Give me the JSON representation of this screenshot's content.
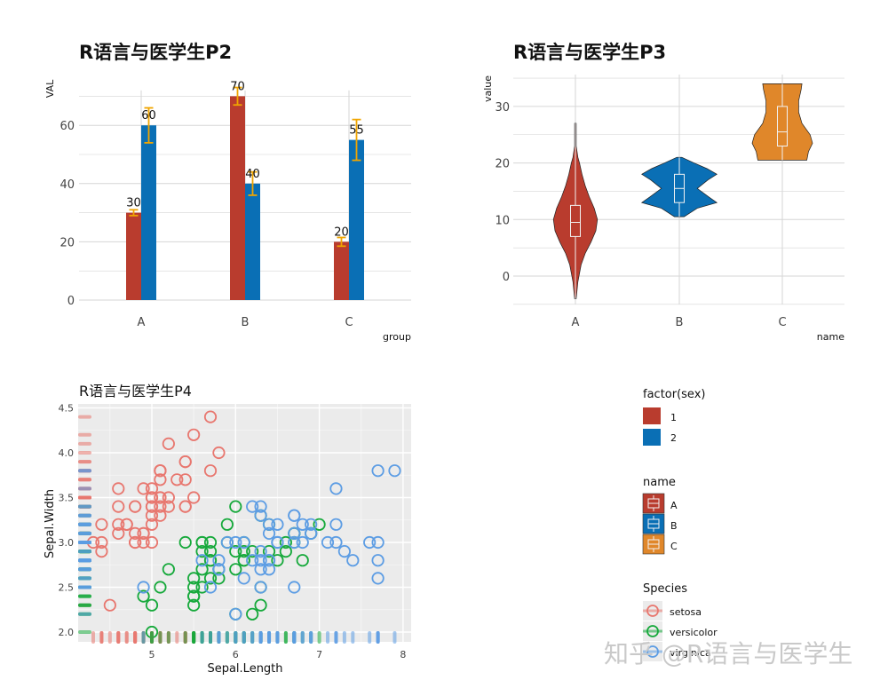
{
  "colors": {
    "sex1": "#b93c2e",
    "sex2": "#0a6fb5",
    "nameA": "#b93c2e",
    "nameB": "#0a6fb5",
    "nameC": "#e0872a",
    "errorbar": "#f0a500",
    "setosa": "#e8776f",
    "versicolor": "#16a93b",
    "virginica": "#5d9de4",
    "panel_grey": "#ebebeb",
    "grid_light": "#d4d4d4"
  },
  "chart_data": [
    {
      "id": "p2",
      "type": "bar",
      "title": "R语言与医学生P2",
      "xlabel": "group",
      "ylabel": "VAL",
      "categories": [
        "A",
        "B",
        "C"
      ],
      "series": [
        {
          "name": "1",
          "values": [
            30,
            70,
            20
          ],
          "errors": [
            1,
            3,
            1.5
          ]
        },
        {
          "name": "2",
          "values": [
            60,
            40,
            55
          ],
          "errors": [
            6,
            4,
            7
          ]
        }
      ],
      "value_labels": [
        [
          "30",
          "70",
          "20"
        ],
        [
          "60",
          "40",
          "55"
        ]
      ],
      "yticks": [
        0,
        20,
        40,
        60
      ],
      "ylim": [
        0,
        73
      ]
    },
    {
      "id": "p3",
      "type": "violin",
      "title": "R语言与医学生P3",
      "xlabel": "name",
      "ylabel": "value",
      "categories": [
        "A",
        "B",
        "C"
      ],
      "groups": [
        {
          "name": "A",
          "min": -4,
          "max": 27,
          "q1": 7,
          "median": 9.5,
          "q3": 12.5,
          "profile": [
            [
              -4,
              0.01
            ],
            [
              -1,
              0.03
            ],
            [
              2,
              0.07
            ],
            [
              4,
              0.12
            ],
            [
              6,
              0.19
            ],
            [
              8,
              0.25
            ],
            [
              10,
              0.27
            ],
            [
              12,
              0.23
            ],
            [
              14,
              0.17
            ],
            [
              16,
              0.12
            ],
            [
              18,
              0.08
            ],
            [
              20,
              0.05
            ],
            [
              21,
              0.03
            ],
            [
              23,
              0.01
            ],
            [
              27,
              0.01
            ]
          ]
        },
        {
          "name": "B",
          "min": 10.5,
          "max": 21,
          "q1": 13,
          "median": 15.5,
          "q3": 18,
          "profile": [
            [
              10.5,
              0.06
            ],
            [
              12,
              0.22
            ],
            [
              13,
              0.46
            ],
            [
              14,
              0.36
            ],
            [
              15.5,
              0.22
            ],
            [
              17,
              0.35
            ],
            [
              18,
              0.46
            ],
            [
              19,
              0.34
            ],
            [
              20,
              0.18
            ],
            [
              21,
              0.03
            ]
          ]
        },
        {
          "name": "C",
          "min": 20.5,
          "max": 34,
          "q1": 23,
          "median": 25.5,
          "q3": 30,
          "profile": [
            [
              20.5,
              0.3
            ],
            [
              22,
              0.32
            ],
            [
              23.5,
              0.37
            ],
            [
              25,
              0.34
            ],
            [
              27,
              0.24
            ],
            [
              29,
              0.2
            ],
            [
              31,
              0.2
            ],
            [
              33,
              0.23
            ],
            [
              34,
              0.24
            ]
          ]
        }
      ],
      "yticks": [
        0,
        10,
        20,
        30
      ],
      "ylim": [
        -5,
        35
      ]
    },
    {
      "id": "p4",
      "type": "scatter",
      "title": "R语言与医学生P4",
      "xlabel": "Sepal.Length",
      "ylabel": "Sepal.Width",
      "xticks": [
        5,
        6,
        7,
        8
      ],
      "yticks": [
        "2.0",
        "2.5",
        "3.0",
        "3.5",
        "4.0",
        "4.5"
      ],
      "xlim": [
        4.2,
        8.1
      ],
      "ylim": [
        1.92,
        4.52
      ],
      "series": [
        {
          "name": "setosa",
          "points": [
            [
              5.1,
              3.5
            ],
            [
              4.9,
              3.0
            ],
            [
              4.7,
              3.2
            ],
            [
              4.6,
              3.1
            ],
            [
              5.0,
              3.6
            ],
            [
              5.4,
              3.9
            ],
            [
              4.6,
              3.4
            ],
            [
              5.0,
              3.4
            ],
            [
              4.4,
              2.9
            ],
            [
              4.9,
              3.1
            ],
            [
              5.4,
              3.7
            ],
            [
              4.8,
              3.4
            ],
            [
              4.8,
              3.0
            ],
            [
              4.3,
              3.0
            ],
            [
              5.8,
              4.0
            ],
            [
              5.7,
              4.4
            ],
            [
              5.4,
              3.9
            ],
            [
              5.1,
              3.5
            ],
            [
              5.7,
              3.8
            ],
            [
              5.1,
              3.8
            ],
            [
              5.4,
              3.4
            ],
            [
              5.1,
              3.7
            ],
            [
              4.6,
              3.6
            ],
            [
              5.1,
              3.3
            ],
            [
              4.8,
              3.4
            ],
            [
              5.0,
              3.0
            ],
            [
              5.0,
              3.4
            ],
            [
              5.2,
              3.5
            ],
            [
              5.2,
              3.4
            ],
            [
              4.7,
              3.2
            ],
            [
              4.8,
              3.1
            ],
            [
              5.4,
              3.4
            ],
            [
              5.2,
              4.1
            ],
            [
              5.5,
              4.2
            ],
            [
              4.9,
              3.1
            ],
            [
              5.0,
              3.2
            ],
            [
              5.5,
              3.5
            ],
            [
              4.9,
              3.6
            ],
            [
              4.4,
              3.0
            ],
            [
              5.1,
              3.4
            ],
            [
              5.0,
              3.5
            ],
            [
              4.5,
              2.3
            ],
            [
              4.4,
              3.2
            ],
            [
              5.0,
              3.5
            ],
            [
              5.1,
              3.8
            ],
            [
              4.8,
              3.0
            ],
            [
              5.1,
              3.8
            ],
            [
              4.6,
              3.2
            ],
            [
              5.3,
              3.7
            ],
            [
              5.0,
              3.3
            ]
          ]
        },
        {
          "name": "versicolor",
          "points": [
            [
              7.0,
              3.2
            ],
            [
              6.4,
              3.2
            ],
            [
              6.9,
              3.1
            ],
            [
              5.5,
              2.3
            ],
            [
              6.5,
              2.8
            ],
            [
              5.7,
              2.8
            ],
            [
              6.3,
              3.3
            ],
            [
              4.9,
              2.4
            ],
            [
              6.6,
              2.9
            ],
            [
              5.2,
              2.7
            ],
            [
              5.0,
              2.0
            ],
            [
              5.9,
              3.0
            ],
            [
              6.0,
              2.2
            ],
            [
              6.1,
              2.9
            ],
            [
              5.6,
              2.9
            ],
            [
              6.7,
              3.1
            ],
            [
              5.6,
              3.0
            ],
            [
              5.8,
              2.7
            ],
            [
              6.2,
              2.2
            ],
            [
              5.6,
              2.5
            ],
            [
              5.9,
              3.2
            ],
            [
              6.1,
              2.8
            ],
            [
              6.3,
              2.5
            ],
            [
              6.1,
              2.8
            ],
            [
              6.4,
              2.9
            ],
            [
              6.6,
              3.0
            ],
            [
              6.8,
              2.8
            ],
            [
              6.7,
              3.0
            ],
            [
              6.0,
              2.9
            ],
            [
              5.7,
              2.6
            ],
            [
              5.5,
              2.4
            ],
            [
              5.5,
              2.4
            ],
            [
              5.8,
              2.7
            ],
            [
              6.0,
              2.7
            ],
            [
              5.4,
              3.0
            ],
            [
              6.0,
              3.4
            ],
            [
              6.7,
              3.1
            ],
            [
              6.3,
              2.3
            ],
            [
              5.6,
              3.0
            ],
            [
              5.5,
              2.5
            ],
            [
              5.5,
              2.6
            ],
            [
              6.1,
              3.0
            ],
            [
              5.8,
              2.6
            ],
            [
              5.0,
              2.3
            ],
            [
              5.6,
              2.7
            ],
            [
              5.7,
              3.0
            ],
            [
              5.7,
              2.9
            ],
            [
              6.2,
              2.9
            ],
            [
              5.1,
              2.5
            ],
            [
              5.7,
              2.8
            ]
          ]
        },
        {
          "name": "virginica",
          "points": [
            [
              6.3,
              3.3
            ],
            [
              5.8,
              2.7
            ],
            [
              7.1,
              3.0
            ],
            [
              6.3,
              2.9
            ],
            [
              6.5,
              3.0
            ],
            [
              7.6,
              3.0
            ],
            [
              4.9,
              2.5
            ],
            [
              7.3,
              2.9
            ],
            [
              6.7,
              2.5
            ],
            [
              7.2,
              3.6
            ],
            [
              6.5,
              3.2
            ],
            [
              6.4,
              2.7
            ],
            [
              6.8,
              3.0
            ],
            [
              5.7,
              2.5
            ],
            [
              5.8,
              2.8
            ],
            [
              6.4,
              3.2
            ],
            [
              6.5,
              3.0
            ],
            [
              7.7,
              3.8
            ],
            [
              7.7,
              2.6
            ],
            [
              6.0,
              2.2
            ],
            [
              6.9,
              3.2
            ],
            [
              5.6,
              2.8
            ],
            [
              7.7,
              2.8
            ],
            [
              6.3,
              2.7
            ],
            [
              6.7,
              3.3
            ],
            [
              7.2,
              3.2
            ],
            [
              6.2,
              2.8
            ],
            [
              6.1,
              3.0
            ],
            [
              6.4,
              2.8
            ],
            [
              7.2,
              3.0
            ],
            [
              7.4,
              2.8
            ],
            [
              7.9,
              3.8
            ],
            [
              6.4,
              2.8
            ],
            [
              6.3,
              2.8
            ],
            [
              6.1,
              2.6
            ],
            [
              7.7,
              3.0
            ],
            [
              6.3,
              3.4
            ],
            [
              6.4,
              3.1
            ],
            [
              6.0,
              3.0
            ],
            [
              6.9,
              3.1
            ],
            [
              6.7,
              3.1
            ],
            [
              6.9,
              3.1
            ],
            [
              5.8,
              2.7
            ],
            [
              6.8,
              3.2
            ],
            [
              6.7,
              3.3
            ],
            [
              6.7,
              3.0
            ],
            [
              6.3,
              2.5
            ],
            [
              6.5,
              3.0
            ],
            [
              6.2,
              3.4
            ],
            [
              5.9,
              3.0
            ]
          ]
        }
      ]
    }
  ],
  "legends": {
    "sex": {
      "title": "factor(sex)",
      "items": [
        "1",
        "2"
      ]
    },
    "name": {
      "title": "name",
      "items": [
        "A",
        "B",
        "C"
      ]
    },
    "species": {
      "title": "Species",
      "items": [
        "setosa",
        "versicolor",
        "virginica"
      ]
    }
  },
  "watermark": "知乎 @R语言与医学生"
}
